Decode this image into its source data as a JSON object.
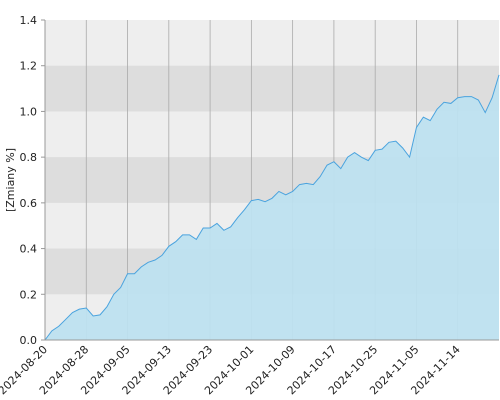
{
  "chart_data": {
    "type": "area",
    "y_label": "[Zmiany %]",
    "categories": [
      "2024-08-20",
      null,
      null,
      null,
      null,
      null,
      "2024-08-28",
      null,
      null,
      null,
      null,
      null,
      "2024-09-05",
      null,
      null,
      null,
      null,
      null,
      "2024-09-13",
      null,
      null,
      null,
      null,
      null,
      "2024-09-23",
      null,
      null,
      null,
      null,
      null,
      "2024-10-01",
      null,
      null,
      null,
      null,
      null,
      "2024-10-09",
      null,
      null,
      null,
      null,
      null,
      "2024-10-17",
      null,
      null,
      null,
      null,
      null,
      "2024-10-25",
      null,
      null,
      null,
      null,
      null,
      "2024-11-05",
      null,
      null,
      null,
      null,
      null,
      "2024-11-14",
      null,
      null,
      null,
      null,
      null,
      null
    ],
    "values": [
      0.0,
      0.04,
      0.06,
      0.09,
      0.12,
      0.135,
      0.14,
      0.105,
      0.11,
      0.145,
      0.2,
      0.23,
      0.29,
      0.29,
      0.32,
      0.34,
      0.35,
      0.37,
      0.41,
      0.43,
      0.46,
      0.46,
      0.44,
      0.49,
      0.49,
      0.51,
      0.48,
      0.495,
      0.535,
      0.57,
      0.61,
      0.615,
      0.605,
      0.62,
      0.65,
      0.635,
      0.65,
      0.68,
      0.685,
      0.68,
      0.715,
      0.765,
      0.78,
      0.75,
      0.8,
      0.82,
      0.8,
      0.785,
      0.83,
      0.835,
      0.865,
      0.87,
      0.84,
      0.8,
      0.93,
      0.975,
      0.96,
      1.01,
      1.04,
      1.035,
      1.06,
      1.065,
      1.065,
      1.05,
      0.995,
      1.06,
      1.16
    ],
    "color": "#bde0ef",
    "line_color": "#4aa3de",
    "ylim": [
      0,
      1.4
    ],
    "yticks": [
      {
        "value": 0,
        "label": "0.0"
      },
      0.2,
      0.4,
      0.6,
      0.8,
      {
        "value": 1,
        "label": "1.0"
      },
      1.2,
      1.4
    ],
    "grid": true
  }
}
